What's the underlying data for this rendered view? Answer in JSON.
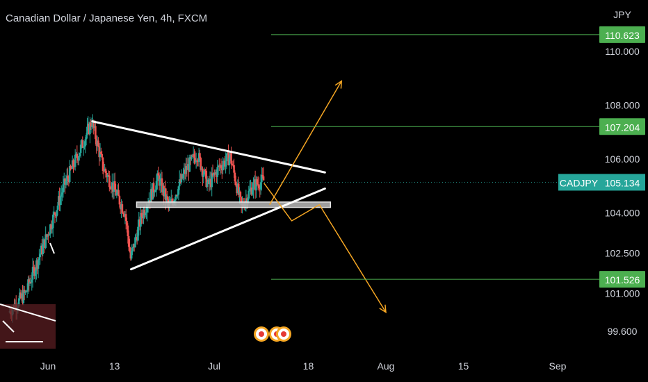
{
  "header": {
    "title": "Canadian Dollar / Japanese Yen, 4h, FXCM"
  },
  "chart_data": {
    "type": "candlestick",
    "symbol": "CADJPY",
    "currency": "JPY",
    "ylim": [
      99.0,
      112.0
    ],
    "y_ticks": [
      {
        "value": 110.0,
        "label": "110.000"
      },
      {
        "value": 108.0,
        "label": "108.000"
      },
      {
        "value": 106.0,
        "label": "106.000"
      },
      {
        "value": 104.0,
        "label": "104.000"
      },
      {
        "value": 102.5,
        "label": "102.500"
      },
      {
        "value": 101.0,
        "label": "101.000"
      },
      {
        "value": 99.6,
        "label": "99.600"
      }
    ],
    "x_ticks": [
      {
        "date": "2022-06-01",
        "label": "Jun"
      },
      {
        "date": "2022-06-13",
        "label": "13"
      },
      {
        "date": "2022-07-01",
        "label": "Jul"
      },
      {
        "date": "2022-07-18",
        "label": "18"
      },
      {
        "date": "2022-08-01",
        "label": "Aug"
      },
      {
        "date": "2022-08-15",
        "label": "15"
      },
      {
        "date": "2022-09-01",
        "label": "Sep"
      }
    ],
    "levels": [
      {
        "value": 110.623,
        "label": "110.623"
      },
      {
        "value": 107.204,
        "label": "107.204"
      },
      {
        "value": 101.526,
        "label": "101.526"
      }
    ],
    "current_price": {
      "value": 105.134,
      "label": "105.134",
      "symbol": "CADJPY"
    },
    "price_path": [
      {
        "date": "2022-05-25",
        "value": 100.3
      },
      {
        "date": "2022-05-28",
        "value": 101.0
      },
      {
        "date": "2022-06-01",
        "value": 103.2
      },
      {
        "date": "2022-06-04",
        "value": 105.0
      },
      {
        "date": "2022-06-07",
        "value": 106.4
      },
      {
        "date": "2022-06-09",
        "value": 107.4
      },
      {
        "date": "2022-06-11",
        "value": 105.7
      },
      {
        "date": "2022-06-13",
        "value": 104.9
      },
      {
        "date": "2022-06-15",
        "value": 104.0
      },
      {
        "date": "2022-06-16",
        "value": 102.3
      },
      {
        "date": "2022-06-18",
        "value": 103.9
      },
      {
        "date": "2022-06-21",
        "value": 105.3
      },
      {
        "date": "2022-06-23",
        "value": 104.2
      },
      {
        "date": "2022-06-26",
        "value": 105.6
      },
      {
        "date": "2022-06-28",
        "value": 106.2
      },
      {
        "date": "2022-06-30",
        "value": 105.0
      },
      {
        "date": "2022-07-02",
        "value": 105.7
      },
      {
        "date": "2022-07-04",
        "value": 106.1
      },
      {
        "date": "2022-07-06",
        "value": 104.2
      },
      {
        "date": "2022-07-08",
        "value": 105.0
      },
      {
        "date": "2022-07-10",
        "value": 105.2
      }
    ],
    "trend_lines": [
      {
        "from": {
          "date": "2022-06-09",
          "value": 107.4
        },
        "to": {
          "date": "2022-07-21",
          "value": 105.5
        }
      },
      {
        "from": {
          "date": "2022-06-16",
          "value": 101.9
        },
        "to": {
          "date": "2022-07-21",
          "value": 104.9
        }
      }
    ],
    "support_zone": {
      "from_date": "2022-06-17",
      "to_date": "2022-07-22",
      "low": 104.2,
      "high": 104.4
    },
    "projection_up": [
      {
        "date": "2022-07-11",
        "value": 104.3
      },
      {
        "date": "2022-07-24",
        "value": 108.9
      }
    ],
    "projection_down": [
      {
        "date": "2022-07-10",
        "value": 105.1
      },
      {
        "date": "2022-07-15",
        "value": 103.7
      },
      {
        "date": "2022-07-20",
        "value": 104.3
      },
      {
        "date": "2022-08-01",
        "value": 100.3
      }
    ]
  },
  "colors": {
    "background": "#000000",
    "up": "#26a69a",
    "down": "#ef5350",
    "level": "#4caf50",
    "projection": "#f5a623",
    "trend": "#ffffff",
    "axis_text": "#d1d4dc"
  }
}
